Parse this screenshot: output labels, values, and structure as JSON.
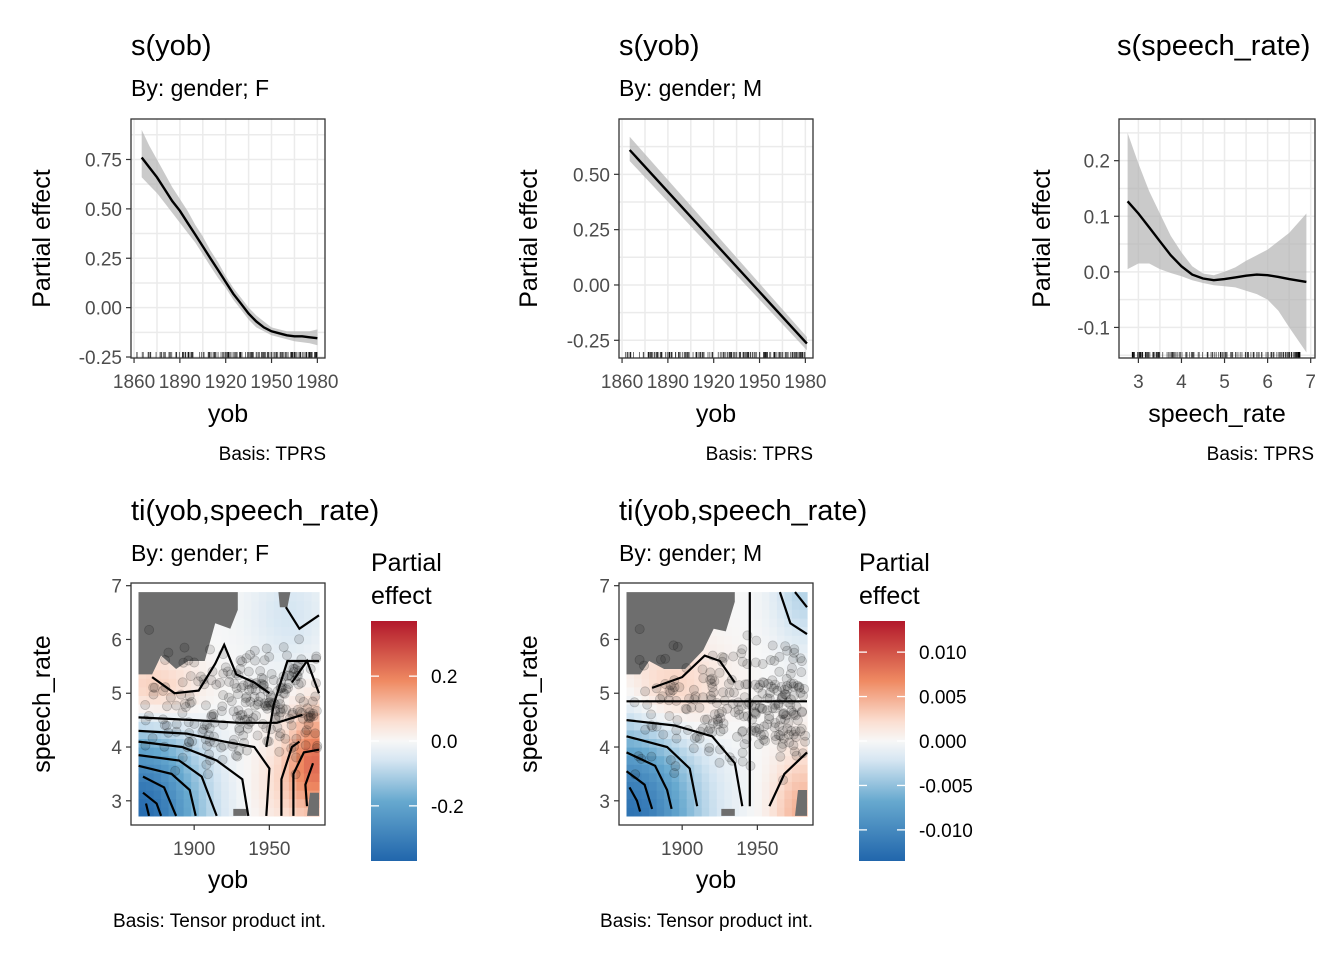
{
  "chart_data": [
    {
      "type": "line",
      "title": "s(yob)",
      "subtitle": "By: gender; F",
      "xlabel": "yob",
      "ylabel": "Partial effect",
      "caption": "Basis: TPRS",
      "xlim": [
        1858,
        1985
      ],
      "ylim": [
        -0.255,
        0.955
      ],
      "xticks": [
        1860,
        1890,
        1920,
        1950,
        1980
      ],
      "yticks": [
        -0.25,
        0.0,
        0.25,
        0.5,
        0.75
      ],
      "ytick_labels": [
        "-0.25",
        "0.00",
        "0.25",
        "0.50",
        "0.75"
      ],
      "series": [
        {
          "x": [
            1865,
            1870,
            1875,
            1880,
            1885,
            1890,
            1895,
            1900,
            1905,
            1910,
            1915,
            1920,
            1925,
            1930,
            1935,
            1940,
            1945,
            1950,
            1955,
            1960,
            1965,
            1970,
            1975,
            1980
          ],
          "y": [
            0.76,
            0.71,
            0.66,
            0.6,
            0.54,
            0.49,
            0.43,
            0.37,
            0.31,
            0.25,
            0.19,
            0.13,
            0.07,
            0.02,
            -0.03,
            -0.07,
            -0.1,
            -0.12,
            -0.13,
            -0.14,
            -0.145,
            -0.145,
            -0.15,
            -0.155
          ],
          "lower": [
            0.66,
            0.62,
            0.58,
            0.53,
            0.48,
            0.43,
            0.38,
            0.33,
            0.27,
            0.21,
            0.15,
            0.1,
            0.04,
            -0.01,
            -0.06,
            -0.1,
            -0.12,
            -0.14,
            -0.15,
            -0.16,
            -0.17,
            -0.175,
            -0.18,
            -0.19
          ],
          "upper": [
            0.9,
            0.82,
            0.75,
            0.68,
            0.61,
            0.55,
            0.49,
            0.42,
            0.36,
            0.29,
            0.23,
            0.16,
            0.1,
            0.05,
            0.0,
            -0.04,
            -0.07,
            -0.1,
            -0.11,
            -0.12,
            -0.12,
            -0.12,
            -0.12,
            -0.11
          ]
        }
      ]
    },
    {
      "type": "line",
      "title": "s(yob)",
      "subtitle": "By: gender; M",
      "xlabel": "yob",
      "ylabel": "Partial effect",
      "caption": "Basis: TPRS",
      "xlim": [
        1858,
        1985
      ],
      "ylim": [
        -0.33,
        0.75
      ],
      "xticks": [
        1860,
        1890,
        1920,
        1950,
        1980
      ],
      "yticks": [
        -0.25,
        0.0,
        0.25,
        0.5
      ],
      "ytick_labels": [
        "-0.25",
        "0.00",
        "0.25",
        "0.50"
      ],
      "series": [
        {
          "x": [
            1865,
            1981
          ],
          "y": [
            0.61,
            -0.265
          ],
          "lower": [
            0.56,
            -0.295
          ],
          "upper": [
            0.67,
            -0.235
          ]
        }
      ]
    },
    {
      "type": "line",
      "title": "s(speech_rate)",
      "subtitle": "",
      "xlabel": "speech_rate",
      "ylabel": "Partial effect",
      "caption": "Basis: TPRS",
      "xlim": [
        2.55,
        7.1
      ],
      "ylim": [
        -0.155,
        0.275
      ],
      "xticks": [
        3,
        4,
        5,
        6,
        7
      ],
      "yticks": [
        -0.1,
        0.0,
        0.1,
        0.2
      ],
      "ytick_labels": [
        "-0.1",
        "0.0",
        "0.1",
        "0.2"
      ],
      "series": [
        {
          "x": [
            2.75,
            3.0,
            3.25,
            3.5,
            3.75,
            4.0,
            4.25,
            4.5,
            4.75,
            5.0,
            5.25,
            5.5,
            5.75,
            6.0,
            6.25,
            6.5,
            6.9
          ],
          "y": [
            0.127,
            0.105,
            0.08,
            0.055,
            0.03,
            0.01,
            -0.005,
            -0.012,
            -0.015,
            -0.013,
            -0.01,
            -0.007,
            -0.005,
            -0.006,
            -0.009,
            -0.013,
            -0.018
          ],
          "lower": [
            0.005,
            0.015,
            0.015,
            0.005,
            -0.002,
            -0.008,
            -0.015,
            -0.02,
            -0.024,
            -0.026,
            -0.028,
            -0.034,
            -0.04,
            -0.05,
            -0.07,
            -0.1,
            -0.145
          ],
          "upper": [
            0.25,
            0.195,
            0.145,
            0.105,
            0.065,
            0.035,
            0.01,
            -0.003,
            -0.006,
            0.0,
            0.008,
            0.02,
            0.03,
            0.04,
            0.055,
            0.07,
            0.105
          ]
        }
      ]
    },
    {
      "type": "heatmap",
      "title": "ti(yob,speech_rate)",
      "subtitle": "By: gender; F",
      "xlabel": "yob",
      "ylabel": "speech_rate",
      "caption": "Basis: Tensor product int.",
      "xlim": [
        1858,
        1987
      ],
      "ylim": [
        2.55,
        7.05
      ],
      "xticks": [
        1900,
        1950
      ],
      "yticks": [
        3,
        4,
        5,
        6,
        7
      ],
      "legend": {
        "title": [
          "Partial",
          "effect"
        ],
        "min": -0.37,
        "max": 0.37,
        "ticks": [
          0.2,
          0.0,
          -0.2
        ],
        "tick_labels": [
          "0.2",
          "0.0",
          "-0.2"
        ]
      }
    },
    {
      "type": "heatmap",
      "title": "ti(yob,speech_rate)",
      "subtitle": "By: gender; M",
      "xlabel": "yob",
      "ylabel": "speech_rate",
      "caption": "Basis: Tensor product int.",
      "xlim": [
        1858,
        1987
      ],
      "ylim": [
        2.55,
        7.05
      ],
      "xticks": [
        1900,
        1950
      ],
      "yticks": [
        3,
        4,
        5,
        6,
        7
      ],
      "legend": {
        "title": [
          "Partial",
          "effect"
        ],
        "min": -0.0135,
        "max": 0.0135,
        "ticks": [
          0.01,
          0.005,
          0.0,
          -0.005,
          -0.01
        ],
        "tick_labels": [
          "0.010",
          "0.005",
          "0.000",
          "-0.005",
          "-0.010"
        ]
      }
    }
  ]
}
